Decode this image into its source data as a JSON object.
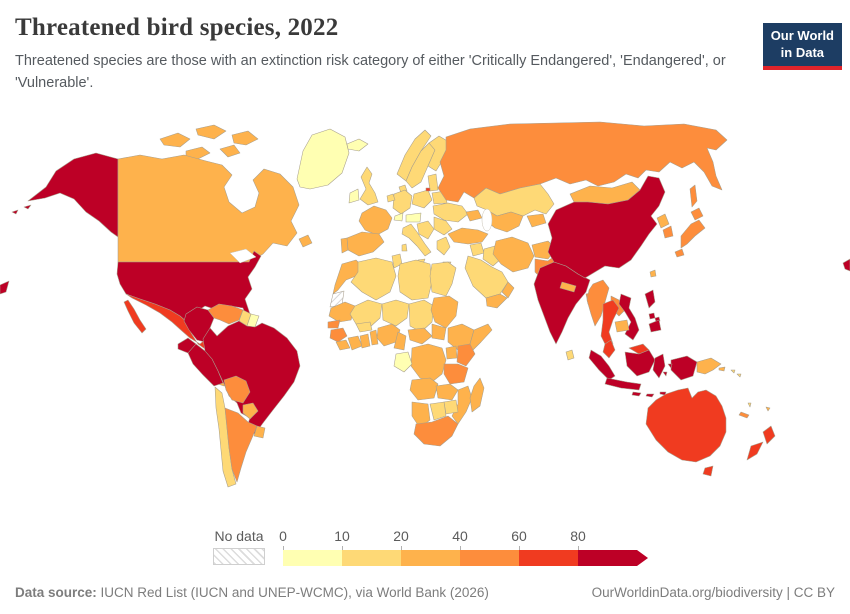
{
  "header": {
    "title": "Threatened bird species, 2022",
    "subtitle": "Threatened species are those with an extinction risk category of either 'Critically Endangered', 'Endangered', or 'Vulnerable'."
  },
  "logo": {
    "line1": "Our World",
    "line2": "in Data",
    "bg": "#1d3d63",
    "accent": "#e0242b"
  },
  "legend": {
    "no_data_label": "No data",
    "bins": [
      {
        "label": "0",
        "range": "0-10",
        "color": "#FFFFB2"
      },
      {
        "label": "10",
        "range": "10-20",
        "color": "#FED976"
      },
      {
        "label": "20",
        "range": "20-40",
        "color": "#FEB24C"
      },
      {
        "label": "40",
        "range": "40-60",
        "color": "#FD8D3C"
      },
      {
        "label": "60",
        "range": "60-80",
        "color": "#F03B20"
      },
      {
        "label": "80",
        "range": "80+",
        "color": "#BD0026"
      }
    ]
  },
  "map": {
    "stroke": "#a89f8d",
    "regions": {
      "greenland": 0,
      "canada": 2,
      "usa": 5,
      "mexico": 4,
      "guatemala": 3,
      "honduras-nicaragua": 1,
      "costa-rica-panama": 2,
      "cuba": 1,
      "jamaica": 2,
      "hispaniola": 2,
      "puerto-rico": 2,
      "bahamas": 0,
      "lesser-antilles": 3,
      "trinidad": 2,
      "colombia": 5,
      "venezuela": 3,
      "guyana": 1,
      "suriname": 0,
      "ecuador": 5,
      "peru": 5,
      "brazil": 5,
      "bolivia": 3,
      "paraguay": 2,
      "uruguay": 2,
      "chile": 1,
      "argentina": 3,
      "iceland": 0,
      "norway": 1,
      "sweden": 1,
      "finland": 1,
      "denmark": 1,
      "uk": 1,
      "ireland": 0,
      "france": 2,
      "spain": 2,
      "portugal": 2,
      "germany": 1,
      "benelux": 1,
      "italy": 1,
      "alpine-pale": 0,
      "poland": 1,
      "baltics": 1,
      "kaliningrad": 4,
      "belarus": 1,
      "ukraine": 1,
      "romania-bulgaria": 1,
      "balkans": 1,
      "greece": 1,
      "russia": 3,
      "kazakhstan": 1,
      "uzbek-turkmen": 2,
      "kyrgyz-tajik": 2,
      "caucasus": 2,
      "turkey": 2,
      "syria": 1,
      "iraq": 1,
      "iran": 2,
      "afghanistan": 2,
      "pakistan": 3,
      "saudi-arabia": 1,
      "yemen": 2,
      "oman": 2,
      "morocco": 2,
      "western-sahara": "nodata",
      "algeria": 1,
      "tunisia": 1,
      "libya": 1,
      "egypt": 1,
      "mauritania": 2,
      "mali": 1,
      "niger": 1,
      "chad": 1,
      "sudan": 2,
      "senegal": 3,
      "guinea": 3,
      "sierra-leone-liberia": 2,
      "ivory-coast": 2,
      "ghana": 2,
      "burkina": 1,
      "benin-togo": 2,
      "nigeria": 2,
      "cameroon": 2,
      "car": 2,
      "south-sudan": 2,
      "ethiopia": 2,
      "somalia": 2,
      "drc": 2,
      "gabon-congo": 0,
      "uganda": 2,
      "kenya": 3,
      "tanzania": 3,
      "angola": 2,
      "zambia": 2,
      "mozambique": 2,
      "zimbabwe": 1,
      "botswana": 1,
      "namibia": 2,
      "south-africa": 3,
      "madagascar": 2,
      "india": 5,
      "sri-lanka": 1,
      "nepal": 2,
      "bangladesh": 3,
      "china": 5,
      "mongolia": 2,
      "taiwan": 2,
      "north-korea": 2,
      "south-korea": 3,
      "japan": 3,
      "myanmar": 3,
      "thailand": 4,
      "laos": 3,
      "cambodia": 2,
      "vietnam": 5,
      "malaysia": 4,
      "indonesia": 5,
      "philippines": 5,
      "png": 2,
      "solomon": 1,
      "vanuatu": 1,
      "fiji": 2,
      "new-caledonia": 3,
      "australia": 4,
      "new-zealand": 4
    }
  },
  "footer": {
    "source_label": "Data source:",
    "source_text": "IUCN Red List (IUCN and UNEP-WCMC), via World Bank (2026)",
    "right_text": "OurWorldinData.org/biodiversity | CC BY"
  }
}
